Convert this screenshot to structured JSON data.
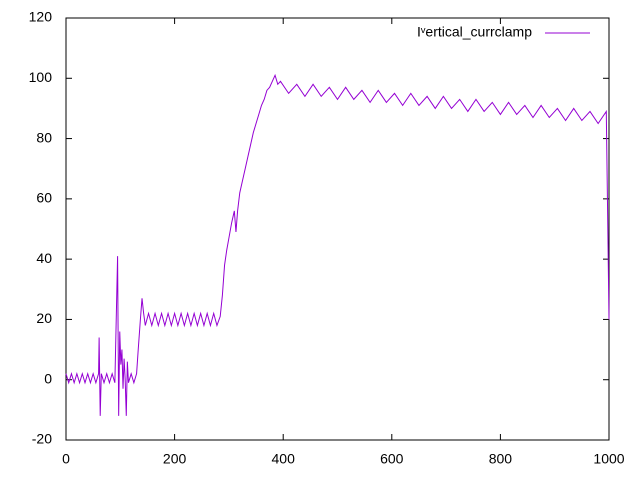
{
  "chart_data": {
    "type": "line",
    "x": [
      0,
      5,
      10,
      15,
      20,
      25,
      30,
      35,
      40,
      45,
      50,
      55,
      60,
      61,
      63,
      65,
      70,
      75,
      80,
      85,
      90,
      95,
      97,
      99,
      101,
      103,
      105,
      107,
      109,
      111,
      113,
      115,
      120,
      125,
      130,
      133,
      137,
      140,
      143,
      146,
      152,
      158,
      164,
      170,
      176,
      182,
      188,
      194,
      200,
      206,
      212,
      218,
      224,
      230,
      236,
      242,
      248,
      254,
      260,
      266,
      272,
      278,
      284,
      288,
      292,
      296,
      300,
      305,
      310,
      313,
      316,
      320,
      325,
      330,
      335,
      340,
      345,
      350,
      355,
      360,
      365,
      370,
      375,
      380,
      385,
      390,
      395,
      410,
      425,
      440,
      455,
      470,
      485,
      500,
      515,
      530,
      545,
      560,
      575,
      590,
      605,
      620,
      635,
      650,
      665,
      680,
      695,
      710,
      725,
      740,
      755,
      770,
      785,
      800,
      815,
      830,
      845,
      860,
      875,
      890,
      905,
      920,
      935,
      950,
      965,
      980,
      995,
      1000
    ],
    "series": [
      {
        "name": "Iᵛertical_currclamp",
        "color": "#9400d3",
        "values": [
          2,
          -1,
          2,
          -1,
          2,
          -1,
          2,
          -1,
          2,
          -1,
          2,
          -1,
          2,
          14,
          -12,
          2,
          -1,
          2,
          -1,
          2,
          -1,
          41,
          -12,
          16,
          5,
          10,
          -3,
          7,
          0,
          -12,
          6,
          -1,
          2,
          -1,
          2,
          10,
          20,
          27,
          22,
          18,
          22,
          18,
          22,
          18,
          22,
          18,
          22,
          18,
          22,
          18,
          22,
          18,
          22,
          18,
          22,
          18,
          22,
          18,
          22,
          18,
          22,
          18,
          21,
          28,
          38,
          43,
          47,
          52,
          56,
          49,
          56,
          62,
          66,
          70,
          74,
          78,
          82,
          85,
          88,
          91,
          93,
          96,
          97,
          99,
          101,
          98,
          99,
          95,
          98,
          94,
          98,
          94,
          97,
          93,
          97,
          93,
          96,
          92,
          96,
          92,
          95,
          91,
          95,
          91,
          94,
          90,
          94,
          90,
          93,
          89,
          93,
          89,
          92,
          88,
          92,
          88,
          91,
          87,
          91,
          87,
          90,
          86,
          90,
          86,
          89,
          85,
          89,
          20
        ]
      }
    ],
    "xlim": [
      0,
      1000
    ],
    "xticks": [
      0,
      200,
      400,
      600,
      800,
      1000
    ],
    "ylim": [
      -20,
      120
    ],
    "yticks": [
      -20,
      0,
      20,
      40,
      60,
      80,
      100,
      120
    ]
  }
}
